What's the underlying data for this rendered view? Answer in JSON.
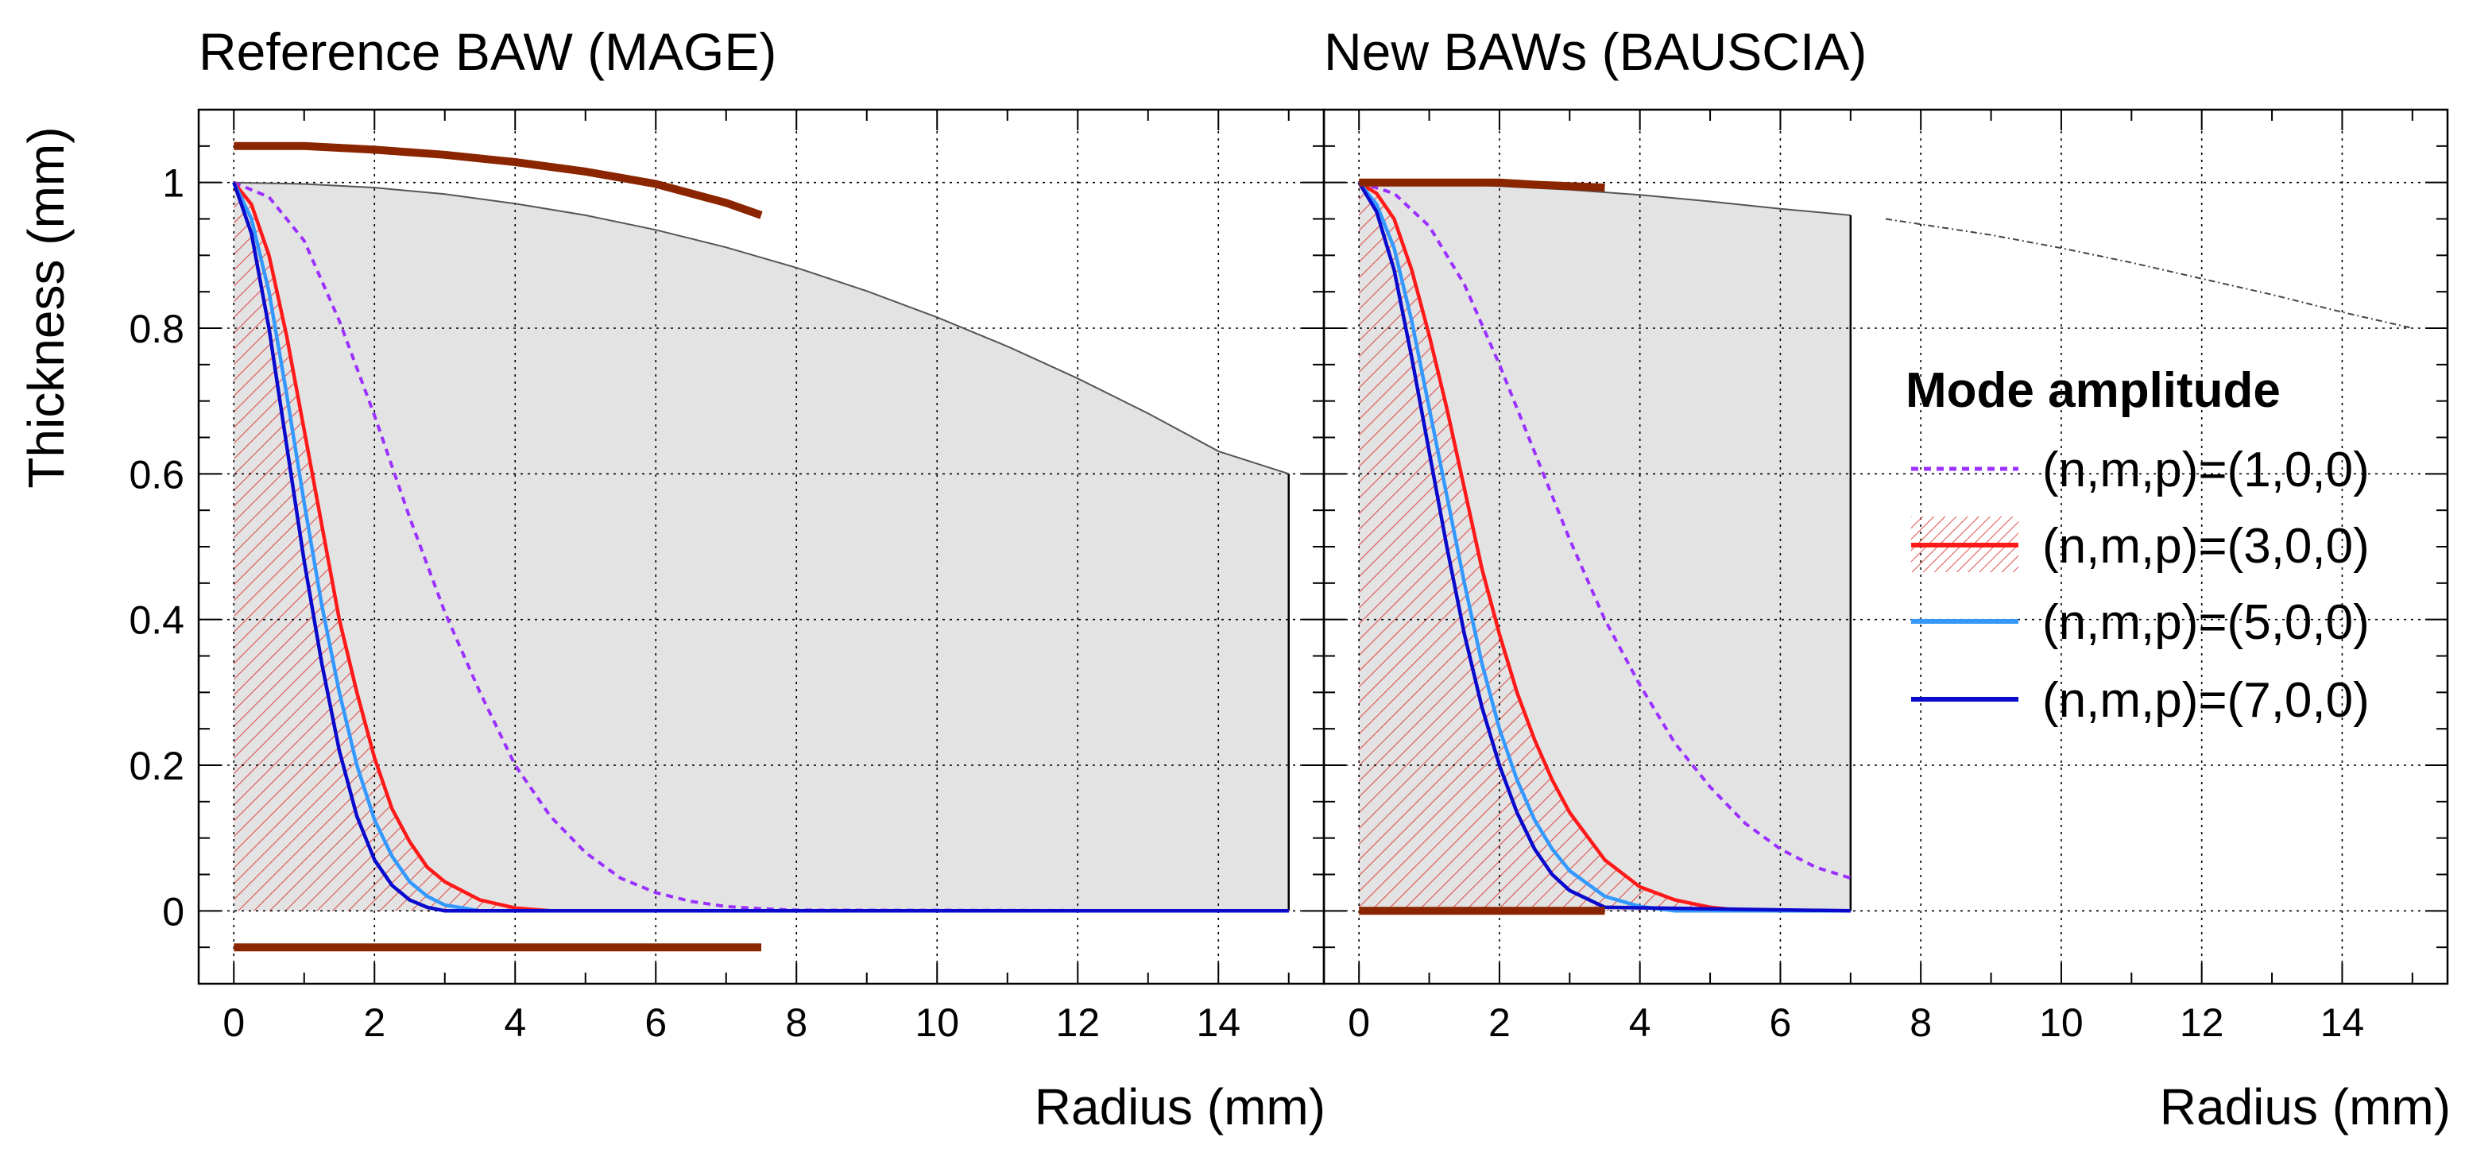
{
  "chart_data": [
    {
      "type": "area",
      "title": "Reference BAW (MAGE)",
      "xlabel": "",
      "ylabel": "Thickness (mm)",
      "xlim": [
        -0.5,
        15.5
      ],
      "ylim": [
        -0.1,
        1.1
      ],
      "xticks": [
        "0",
        "2",
        "4",
        "6",
        "8",
        "10",
        "12",
        "14"
      ],
      "yticks": [
        "0",
        "0.2",
        "0.4",
        "0.6",
        "0.8",
        "1"
      ],
      "grid": true,
      "profile": {
        "name": "BAW thickness profile",
        "x": [
          0,
          1,
          2,
          3,
          4,
          5,
          6,
          7,
          8,
          9,
          10,
          11,
          12,
          13,
          14,
          15
        ],
        "y": [
          1.0,
          0.998,
          0.993,
          0.984,
          0.971,
          0.955,
          0.935,
          0.911,
          0.883,
          0.851,
          0.815,
          0.775,
          0.731,
          0.683,
          0.631,
          0.6
        ]
      },
      "electrodes": [
        {
          "name": "top electrode",
          "x": [
            0,
            1,
            2,
            3,
            4,
            5,
            6,
            7,
            7.5
          ],
          "y": [
            1.05,
            1.05,
            1.045,
            1.038,
            1.028,
            1.015,
            0.998,
            0.972,
            0.955
          ]
        },
        {
          "name": "bottom electrode",
          "x": [
            0,
            7.5
          ],
          "y": [
            -0.05,
            -0.05
          ]
        }
      ],
      "series": [
        {
          "name": "(n,m,p)=(1,0,0)",
          "x": [
            0,
            0.5,
            1,
            1.5,
            2,
            2.5,
            3,
            3.5,
            4,
            4.5,
            5,
            5.5,
            6,
            6.5,
            7,
            7.5,
            8,
            15
          ],
          "values": [
            1.0,
            0.98,
            0.92,
            0.81,
            0.68,
            0.54,
            0.41,
            0.3,
            0.2,
            0.13,
            0.08,
            0.045,
            0.025,
            0.013,
            0.006,
            0.003,
            0.001,
            0.0
          ]
        },
        {
          "name": "(n,m,p)=(3,0,0)",
          "x": [
            0,
            0.25,
            0.5,
            0.75,
            1,
            1.25,
            1.5,
            1.75,
            2,
            2.25,
            2.5,
            2.75,
            3,
            3.5,
            4,
            4.5,
            15
          ],
          "values": [
            1.0,
            0.97,
            0.9,
            0.79,
            0.66,
            0.53,
            0.4,
            0.3,
            0.21,
            0.14,
            0.095,
            0.06,
            0.04,
            0.015,
            0.004,
            0.0,
            0.0
          ]
        },
        {
          "name": "(n,m,p)=(5,0,0)",
          "x": [
            0,
            0.25,
            0.5,
            0.75,
            1,
            1.25,
            1.5,
            1.75,
            2,
            2.25,
            2.5,
            2.75,
            3,
            3.5,
            15
          ],
          "values": [
            1.0,
            0.95,
            0.85,
            0.71,
            0.56,
            0.42,
            0.3,
            0.2,
            0.125,
            0.075,
            0.04,
            0.02,
            0.008,
            0.0,
            0.0
          ]
        },
        {
          "name": "(n,m,p)=(7,0,0)",
          "x": [
            0,
            0.25,
            0.5,
            0.75,
            1,
            1.25,
            1.5,
            1.75,
            2,
            2.25,
            2.5,
            2.75,
            3,
            15
          ],
          "values": [
            1.0,
            0.93,
            0.8,
            0.64,
            0.48,
            0.34,
            0.22,
            0.13,
            0.07,
            0.035,
            0.015,
            0.005,
            0.0,
            0.0
          ]
        }
      ]
    },
    {
      "type": "area",
      "title": "New BAWs (BAUSCIA)",
      "xlabel": "Radius (mm)",
      "ylabel": "",
      "xlim": [
        -0.5,
        15.5
      ],
      "ylim": [
        -0.1,
        1.1
      ],
      "xticks": [
        "0",
        "2",
        "4",
        "6",
        "8",
        "10",
        "12",
        "14"
      ],
      "yticks": [
        "0",
        "0.2",
        "0.4",
        "0.6",
        "0.8",
        "1"
      ],
      "grid": true,
      "profile": {
        "name": "BAW thickness profile",
        "x": [
          0,
          1,
          2,
          3,
          4,
          5,
          6,
          7
        ],
        "y": [
          1.0,
          0.999,
          0.995,
          0.99,
          0.983,
          0.974,
          0.964,
          0.955
        ]
      },
      "profile_extension": {
        "name": "profile extrapolation",
        "x": [
          7.5,
          9,
          10,
          11,
          12,
          13,
          14,
          15
        ],
        "y": [
          0.95,
          0.928,
          0.91,
          0.89,
          0.868,
          0.846,
          0.822,
          0.8
        ]
      },
      "electrodes": [
        {
          "name": "top electrode",
          "x": [
            0,
            1,
            2,
            2.5,
            3,
            3.5
          ],
          "y": [
            1.0,
            1.0,
            1.0,
            0.997,
            0.995,
            0.993
          ]
        },
        {
          "name": "bottom electrode",
          "x": [
            0,
            3.5
          ],
          "y": [
            0.0,
            0.0
          ]
        }
      ],
      "series": [
        {
          "name": "(n,m,p)=(1,0,0)",
          "x": [
            0,
            0.5,
            1,
            1.5,
            2,
            2.5,
            3,
            3.5,
            4,
            4.5,
            5,
            5.5,
            6,
            6.5,
            7
          ],
          "values": [
            1.0,
            0.985,
            0.94,
            0.86,
            0.75,
            0.63,
            0.51,
            0.4,
            0.31,
            0.23,
            0.17,
            0.12,
            0.085,
            0.06,
            0.045
          ]
        },
        {
          "name": "(n,m,p)=(3,0,0)",
          "x": [
            0,
            0.25,
            0.5,
            0.75,
            1,
            1.25,
            1.5,
            1.75,
            2,
            2.25,
            2.5,
            2.75,
            3,
            3.5,
            4,
            4.5,
            5,
            5.5,
            7
          ],
          "values": [
            1.0,
            0.985,
            0.95,
            0.88,
            0.79,
            0.69,
            0.58,
            0.47,
            0.38,
            0.3,
            0.235,
            0.18,
            0.135,
            0.07,
            0.033,
            0.015,
            0.005,
            0.0,
            0.0
          ]
        },
        {
          "name": "(n,m,p)=(5,0,0)",
          "x": [
            0,
            0.25,
            0.5,
            0.75,
            1,
            1.25,
            1.5,
            1.75,
            2,
            2.25,
            2.5,
            2.75,
            3,
            3.5,
            4,
            4.5,
            7
          ],
          "values": [
            1.0,
            0.97,
            0.91,
            0.81,
            0.69,
            0.57,
            0.45,
            0.34,
            0.25,
            0.18,
            0.125,
            0.085,
            0.055,
            0.02,
            0.006,
            0.0,
            0.0
          ]
        },
        {
          "name": "(n,m,p)=(7,0,0)",
          "x": [
            0,
            0.25,
            0.5,
            0.75,
            1,
            1.25,
            1.5,
            1.75,
            2,
            2.25,
            2.5,
            2.75,
            3,
            3.5,
            7
          ],
          "values": [
            1.0,
            0.96,
            0.88,
            0.76,
            0.63,
            0.5,
            0.38,
            0.28,
            0.2,
            0.135,
            0.085,
            0.05,
            0.028,
            0.005,
            0.0
          ]
        }
      ]
    }
  ],
  "legend": {
    "title": "Mode amplitude",
    "entries": [
      "(n,m,p)=(1,0,0)",
      "(n,m,p)=(3,0,0)",
      "(n,m,p)=(5,0,0)",
      "(n,m,p)=(7,0,0)"
    ]
  },
  "colors": {
    "mode_1": "#9b30ff",
    "mode_3": "#ff1a1a",
    "mode_5": "#3399ff",
    "mode_7": "#0a0acc",
    "electrode": "#8b2500",
    "profile_fill": "#e3e3e3",
    "profile_line": "#555555",
    "hatch": "#e05050",
    "grid": "#000000"
  }
}
